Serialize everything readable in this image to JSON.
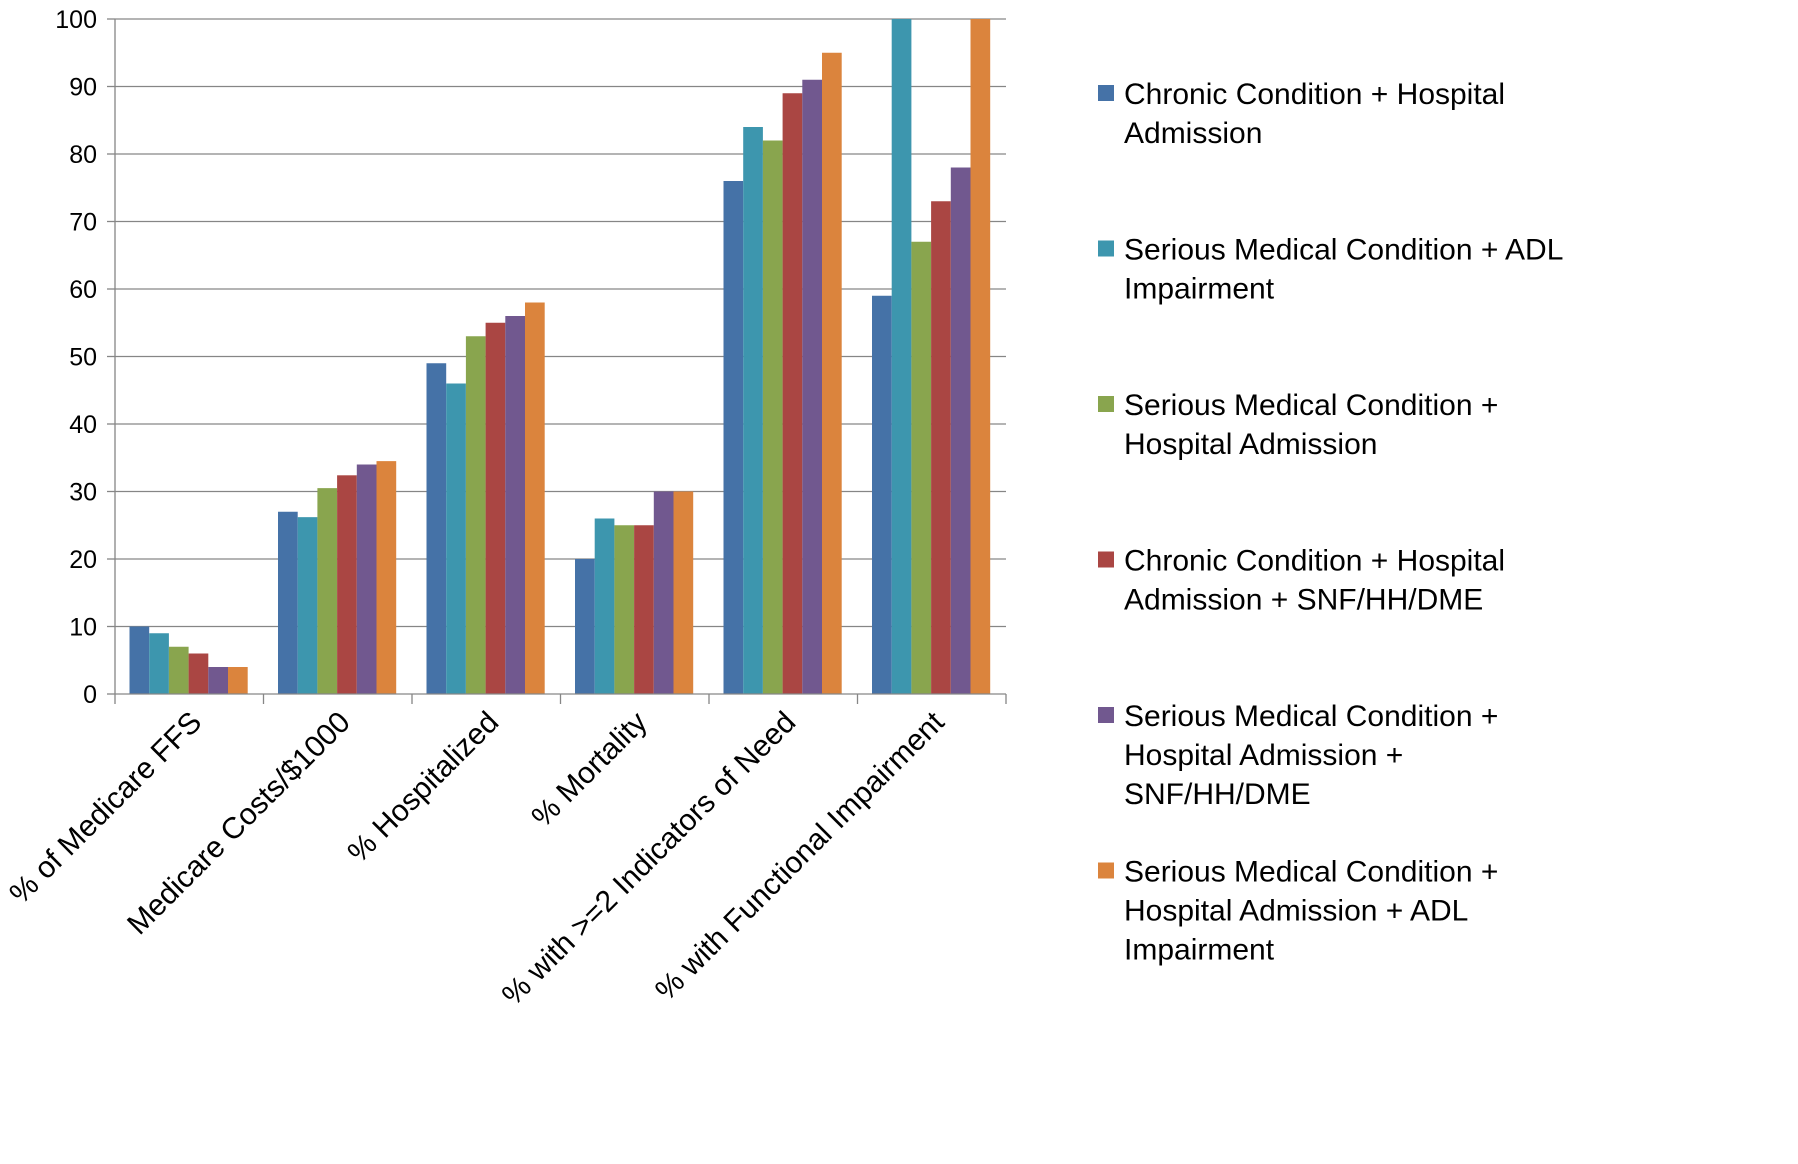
{
  "chart_data": {
    "type": "bar",
    "title": "",
    "xlabel": "",
    "ylabel": "",
    "ylim": [
      0,
      100
    ],
    "yticks": [
      0,
      10,
      20,
      30,
      40,
      50,
      60,
      70,
      80,
      90,
      100
    ],
    "grid": true,
    "legend_position": "right",
    "categories": [
      "% of Medicare FFS",
      "Medicare Costs/$1000",
      "% Hospitalized",
      "% Mortality",
      "% with >=2 Indicators of Need",
      "% with Functional Impairment"
    ],
    "series": [
      {
        "name": "Chronic Condition + Hospital Admission",
        "color": "#4572a7",
        "values": [
          10,
          27,
          49,
          20,
          76,
          59
        ]
      },
      {
        "name": "Serious Medical Condition + ADL Impairment",
        "color": "#3d96ae",
        "values": [
          9,
          26.2,
          46,
          26,
          84,
          100
        ]
      },
      {
        "name": "Serious Medical Condition + Hospital Admission",
        "color": "#89a54e",
        "values": [
          7,
          30.5,
          53,
          25,
          82,
          67
        ]
      },
      {
        "name": "Chronic Condition + Hospital Admission + SNF/HH/DME",
        "color": "#aa4643",
        "values": [
          6,
          32.4,
          55,
          25,
          89,
          73
        ]
      },
      {
        "name": "Serious Medical Condition + Hospital Admission + SNF/HH/DME",
        "color": "#71588f",
        "values": [
          4,
          34,
          56,
          30,
          91,
          78
        ]
      },
      {
        "name": "Serious Medical Condition + Hospital Admission + ADL Impairment",
        "color": "#db843d",
        "values": [
          4,
          34.5,
          58,
          30,
          95,
          100
        ]
      }
    ],
    "legend_lines": [
      [
        "Chronic Condition + Hospital",
        "Admission"
      ],
      [
        "Serious Medical Condition + ADL",
        "Impairment"
      ],
      [
        "Serious Medical Condition +",
        "Hospital Admission"
      ],
      [
        "Chronic Condition + Hospital",
        "Admission + SNF/HH/DME"
      ],
      [
        "Serious Medical Condition +",
        "Hospital Admission +",
        "SNF/HH/DME"
      ],
      [
        "Serious Medical Condition +",
        "Hospital Admission + ADL",
        "Impairment"
      ]
    ]
  }
}
